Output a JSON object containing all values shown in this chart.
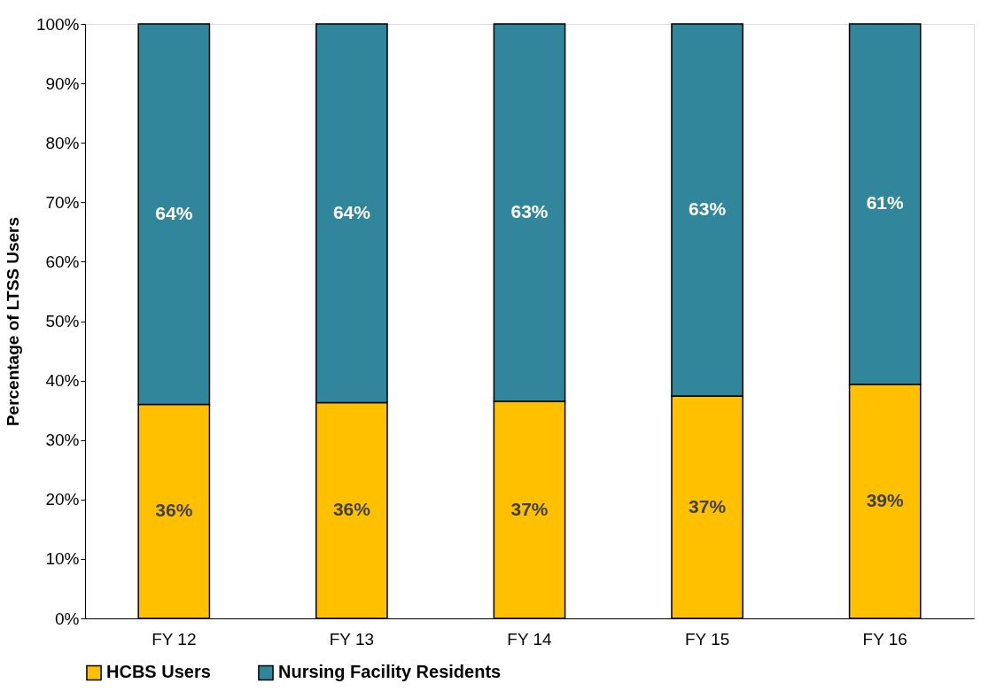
{
  "chart_data": {
    "type": "bar",
    "stacked": true,
    "ylabel": "Percentage of LTSS Users",
    "categories": [
      "FY 12",
      "FY 13",
      "FY 14",
      "FY 15",
      "FY 16"
    ],
    "series": [
      {
        "name": "HCBS Users",
        "color": "#ffc000",
        "values": [
          36.0,
          36.3,
          36.5,
          37.4,
          39.4
        ],
        "value_labels": [
          "36%",
          "36%",
          "37%",
          "37%",
          "39%"
        ]
      },
      {
        "name": "Nursing Facility Residents",
        "color": "#31869b",
        "values": [
          64.0,
          63.7,
          63.5,
          62.6,
          60.6
        ],
        "value_labels": [
          "64%",
          "64%",
          "63%",
          "63%",
          "61%"
        ]
      }
    ],
    "ylim": [
      0,
      100
    ],
    "yticks": [
      {
        "value": 0,
        "label": "0%"
      },
      {
        "value": 10,
        "label": "10%"
      },
      {
        "value": 20,
        "label": "20%"
      },
      {
        "value": 30,
        "label": "30%"
      },
      {
        "value": 40,
        "label": "40%"
      },
      {
        "value": 50,
        "label": "50%"
      },
      {
        "value": 60,
        "label": "60%"
      },
      {
        "value": 70,
        "label": "70%"
      },
      {
        "value": 80,
        "label": "80%"
      },
      {
        "value": 90,
        "label": "90%"
      },
      {
        "value": 100,
        "label": "100%"
      }
    ],
    "grid": false,
    "legend": "bottom"
  }
}
